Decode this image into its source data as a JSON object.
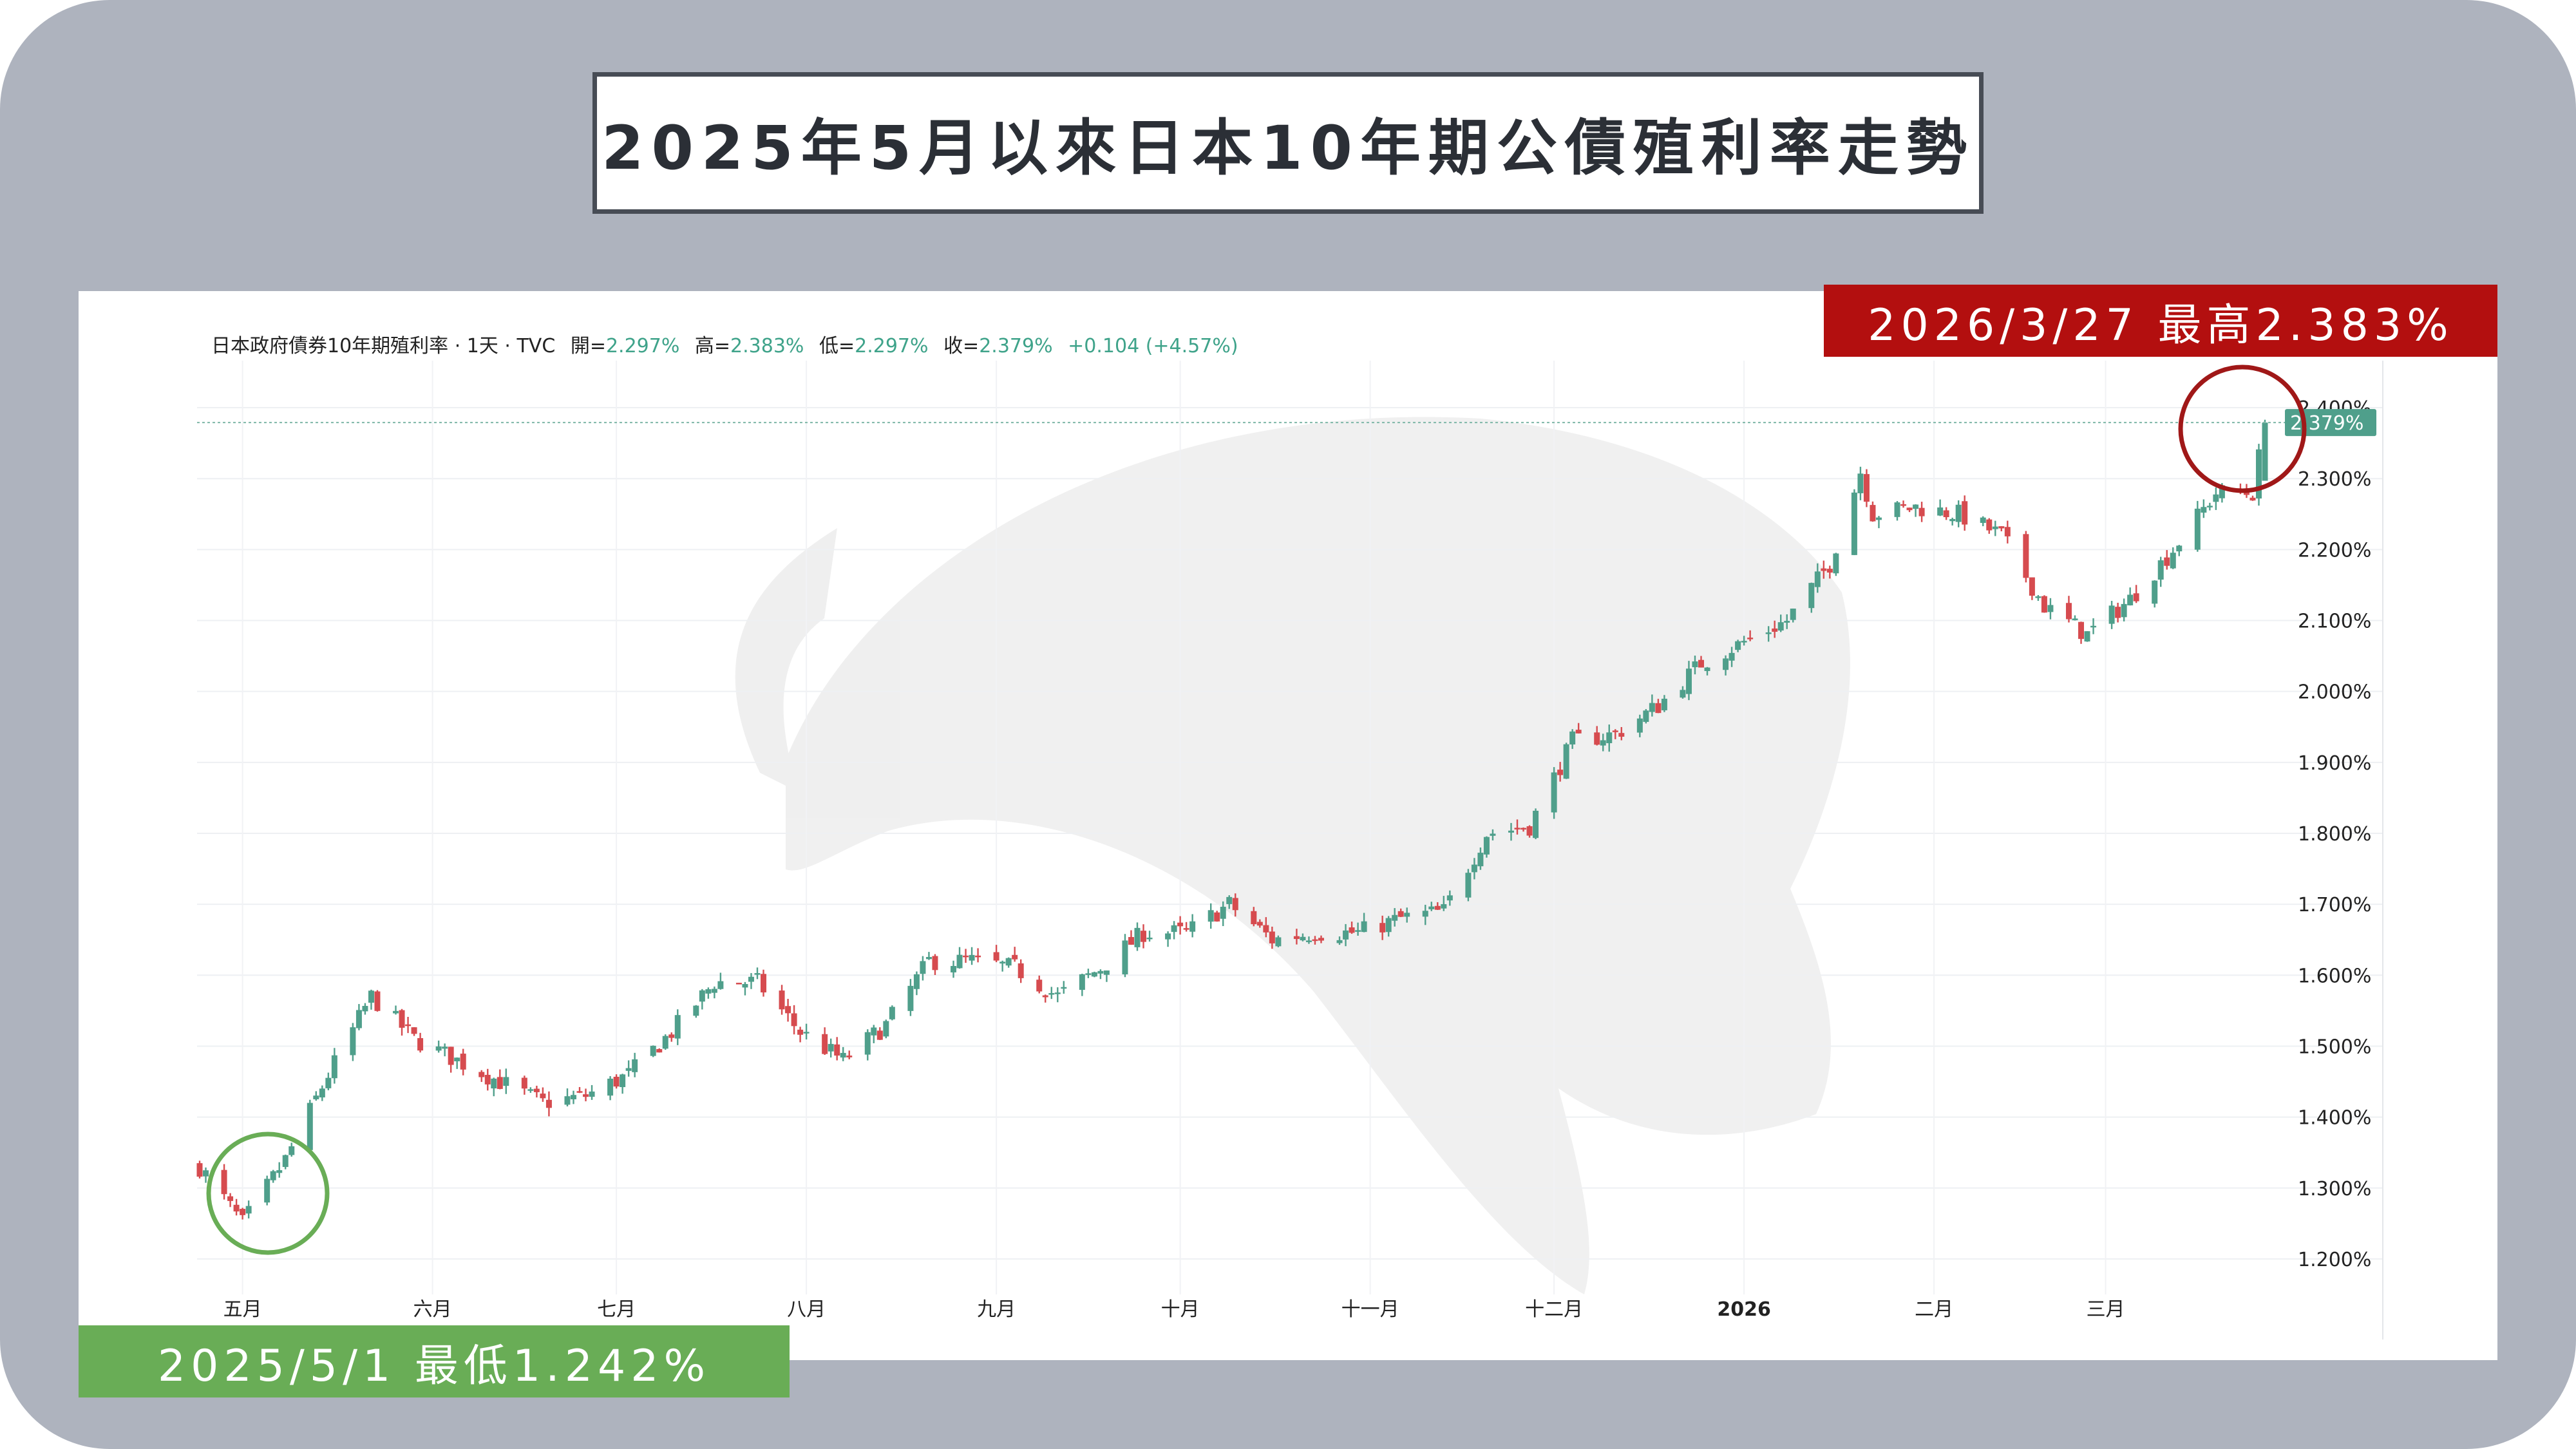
{
  "title": "2025年5月以來日本10年期公債殖利率走勢",
  "legend": {
    "symbol": "日本政府債券10年期殖利率 · 1天 · TVC",
    "open_label": "開=",
    "open": "2.297%",
    "high_label": "高=",
    "high": "2.383%",
    "low_label": "低=",
    "low": "2.297%",
    "close_label": "收=",
    "close": "2.379%",
    "change": "+0.104 (+4.57%)"
  },
  "high_annotation": "2026/3/27 最高2.383%",
  "low_annotation": "2025/5/1 最低1.242%",
  "price_tag": "2.379%",
  "colors": {
    "up": "#4f9f8b",
    "down": "#d64b4f",
    "high_badge": "#b30f0f",
    "low_badge": "#69ad56",
    "high_circle": "#a01818",
    "low_circle": "#69ad56",
    "frame": "#aeb3be"
  },
  "chart_data": {
    "type": "candlestick",
    "interval": "1天",
    "x_axis_labels": [
      "五月",
      "六月",
      "七月",
      "八月",
      "九月",
      "十月",
      "十一月",
      "十二月",
      "2026",
      "二月",
      "三月"
    ],
    "y_ticks": [
      "1.200%",
      "1.300%",
      "1.400%",
      "1.500%",
      "1.600%",
      "1.700%",
      "1.800%",
      "1.900%",
      "2.000%",
      "2.100%",
      "2.200%",
      "2.300%",
      "2.400%"
    ],
    "ylim": [
      1.15,
      2.43
    ],
    "grid": true,
    "last_close": 2.379,
    "close_series_approx": [
      {
        "date": "2025-04-24",
        "close": 1.33
      },
      {
        "date": "2025-05-01",
        "close": 1.25
      },
      {
        "date": "2025-05-08",
        "close": 1.34
      },
      {
        "date": "2025-05-15",
        "close": 1.46
      },
      {
        "date": "2025-05-22",
        "close": 1.57
      },
      {
        "date": "2025-05-29",
        "close": 1.51
      },
      {
        "date": "2025-06-05",
        "close": 1.48
      },
      {
        "date": "2025-06-12",
        "close": 1.45
      },
      {
        "date": "2025-06-19",
        "close": 1.42
      },
      {
        "date": "2025-06-26",
        "close": 1.43
      },
      {
        "date": "2025-07-03",
        "close": 1.46
      },
      {
        "date": "2025-07-10",
        "close": 1.52
      },
      {
        "date": "2025-07-17",
        "close": 1.59
      },
      {
        "date": "2025-07-24",
        "close": 1.59
      },
      {
        "date": "2025-07-31",
        "close": 1.52
      },
      {
        "date": "2025-08-07",
        "close": 1.48
      },
      {
        "date": "2025-08-14",
        "close": 1.53
      },
      {
        "date": "2025-08-21",
        "close": 1.62
      },
      {
        "date": "2025-08-28",
        "close": 1.62
      },
      {
        "date": "2025-09-04",
        "close": 1.61
      },
      {
        "date": "2025-09-11",
        "close": 1.57
      },
      {
        "date": "2025-09-18",
        "close": 1.61
      },
      {
        "date": "2025-09-25",
        "close": 1.66
      },
      {
        "date": "2025-10-02",
        "close": 1.66
      },
      {
        "date": "2025-10-09",
        "close": 1.7
      },
      {
        "date": "2025-10-16",
        "close": 1.65
      },
      {
        "date": "2025-10-23",
        "close": 1.66
      },
      {
        "date": "2025-10-30",
        "close": 1.66
      },
      {
        "date": "2025-11-06",
        "close": 1.68
      },
      {
        "date": "2025-11-13",
        "close": 1.69
      },
      {
        "date": "2025-11-20",
        "close": 1.8
      },
      {
        "date": "2025-11-27",
        "close": 1.81
      },
      {
        "date": "2025-12-04",
        "close": 1.93
      },
      {
        "date": "2025-12-11",
        "close": 1.94
      },
      {
        "date": "2025-12-18",
        "close": 1.98
      },
      {
        "date": "2025-12-25",
        "close": 2.04
      },
      {
        "date": "2026-01-01",
        "close": 2.07
      },
      {
        "date": "2026-01-08",
        "close": 2.1
      },
      {
        "date": "2026-01-15",
        "close": 2.18
      },
      {
        "date": "2026-01-20",
        "close": 2.31
      },
      {
        "date": "2026-01-22",
        "close": 2.25
      },
      {
        "date": "2026-01-29",
        "close": 2.26
      },
      {
        "date": "2026-02-05",
        "close": 2.25
      },
      {
        "date": "2026-02-12",
        "close": 2.22
      },
      {
        "date": "2026-02-19",
        "close": 2.12
      },
      {
        "date": "2026-02-26",
        "close": 2.08
      },
      {
        "date": "2026-03-05",
        "close": 2.13
      },
      {
        "date": "2026-03-12",
        "close": 2.2
      },
      {
        "date": "2026-03-19",
        "close": 2.28
      },
      {
        "date": "2026-03-25",
        "close": 2.28
      },
      {
        "date": "2026-03-27",
        "close": 2.379
      }
    ],
    "highlight_high": {
      "date": "2026-03-27",
      "value": 2.383
    },
    "highlight_low": {
      "date": "2025-05-01",
      "value": 1.242
    }
  }
}
